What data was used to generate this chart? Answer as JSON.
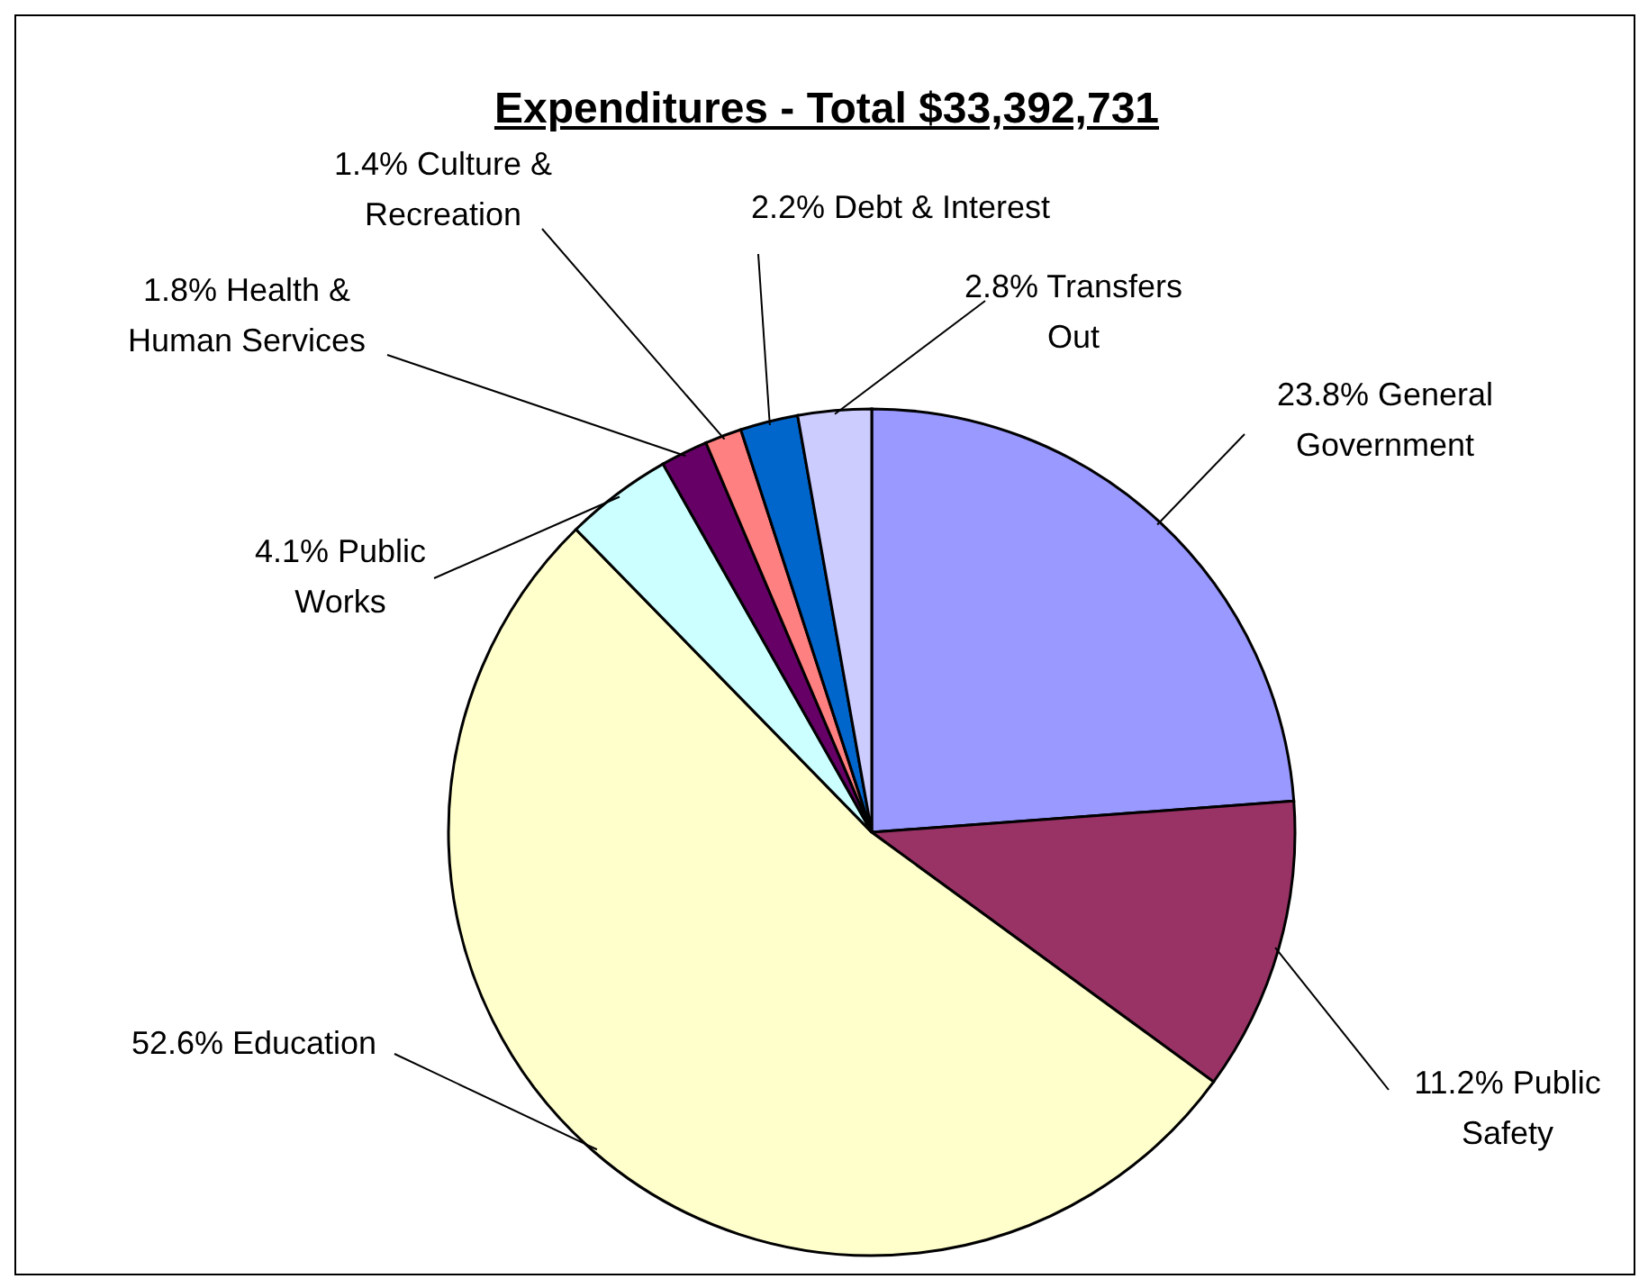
{
  "chart_data": {
    "type": "pie",
    "title": "Expenditures - Total $33,392,731",
    "categories": [
      "General Government",
      "Public Safety",
      "Education",
      "Public Works",
      "Health & Human Services",
      "Culture & Recreation",
      "Debt & Interest",
      "Transfers Out"
    ],
    "values": [
      23.8,
      11.2,
      52.6,
      4.1,
      1.8,
      1.4,
      2.2,
      2.8
    ],
    "value_labels": [
      "23.8%",
      "11.2%",
      "52.6%",
      "4.1%",
      "1.8%",
      "1.4%",
      "2.2%",
      "2.8%"
    ],
    "colors": [
      "#9999ff",
      "#993366",
      "#ffffcc",
      "#ccffff",
      "#660066",
      "#ff8080",
      "#0066cc",
      "#ccccff"
    ]
  }
}
